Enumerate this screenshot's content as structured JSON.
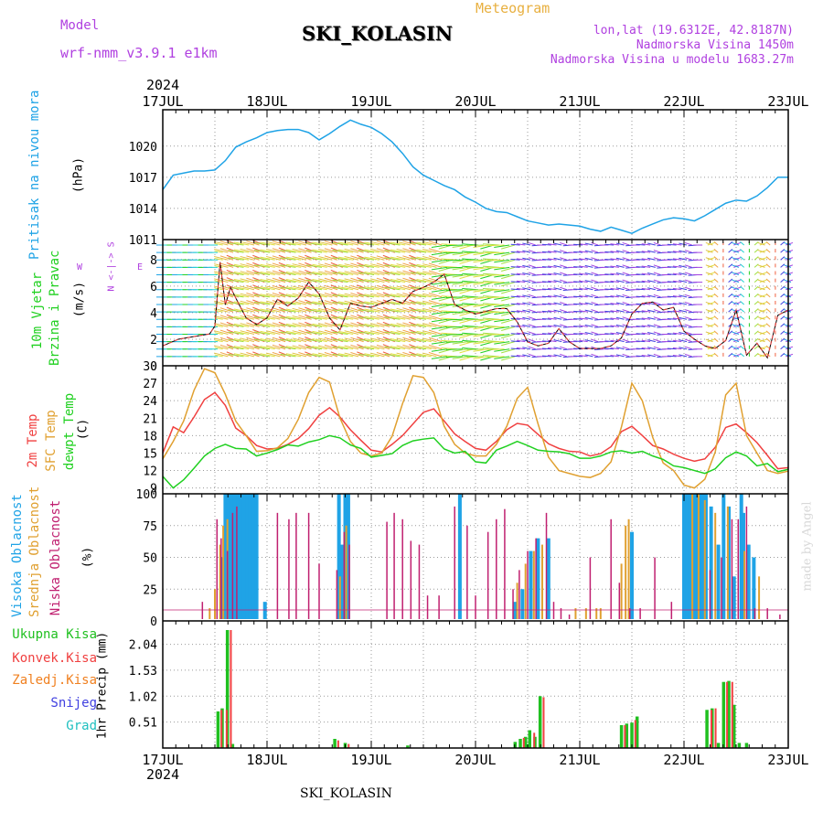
{
  "header": {
    "model_label": "Model",
    "model_name": "wrf-nmm_v3.9.1 e1km",
    "station": "SKI_KOLASIN",
    "meteogram": "Meteogram",
    "lonlat": "lon,lat (19.6312E, 42.8187N)",
    "elevation": "Nadmorska Visina 1450m",
    "model_elevation": "Nadmorska Visina u modelu 1683.27m",
    "year": "2024",
    "footer_station": "SKI_KOLASIN",
    "credit": "made by Angel"
  },
  "colors": {
    "pressure": "#1fa3e6",
    "t2m": "#f04040",
    "sfc": "#e0a030",
    "dew": "#20d020",
    "high_cloud": "#1fa3e6",
    "mid_cloud": "#e0a030",
    "low_cloud": "#c02070",
    "total_precip": "#20c020",
    "conv_precip": "#f04040",
    "frz_precip": "#f08020",
    "snow": "#4040e0",
    "hail": "#20c0c0",
    "violet": "#b040e0",
    "orange_title": "#e8b040"
  },
  "chart_data": [
    {
      "type": "line",
      "name": "pressure",
      "ylabel": "Pritisak na nivou mora",
      "unit": "(hPa)",
      "yticks": [
        1011,
        1014,
        1017,
        1020
      ],
      "ylim": [
        1011,
        1023.5
      ],
      "x": [
        0,
        0.1,
        0.2,
        0.3,
        0.4,
        0.5,
        0.6,
        0.7,
        0.8,
        0.9,
        1,
        1.1,
        1.2,
        1.3,
        1.4,
        1.5,
        1.6,
        1.7,
        1.8,
        1.9,
        2,
        2.1,
        2.2,
        2.3,
        2.4,
        2.5,
        2.6,
        2.7,
        2.8,
        2.9,
        3,
        3.1,
        3.2,
        3.3,
        3.4,
        3.5,
        3.6,
        3.7,
        3.8,
        3.9,
        4,
        4.1,
        4.2,
        4.3,
        4.4,
        4.5,
        4.6,
        4.7,
        4.8,
        4.9,
        5,
        5.1,
        5.2,
        5.3,
        5.4,
        5.5,
        5.6,
        5.7,
        5.8,
        5.9,
        6
      ],
      "values": [
        1015.8,
        1017.2,
        1017.4,
        1017.6,
        1017.6,
        1017.7,
        1018.6,
        1019.9,
        1020.4,
        1020.8,
        1021.3,
        1021.5,
        1021.6,
        1021.6,
        1021.3,
        1020.6,
        1021.2,
        1021.9,
        1022.5,
        1022.1,
        1021.8,
        1021.2,
        1020.4,
        1019.3,
        1018.0,
        1017.2,
        1016.7,
        1016.2,
        1015.8,
        1015.1,
        1014.6,
        1014.0,
        1013.7,
        1013.6,
        1013.2,
        1012.8,
        1012.6,
        1012.4,
        1012.5,
        1012.4,
        1012.3,
        1012.0,
        1011.8,
        1012.2,
        1011.9,
        1011.6,
        1012.1,
        1012.5,
        1012.9,
        1013.1,
        1013.0,
        1012.8,
        1013.3,
        1013.9,
        1014.5,
        1014.8,
        1014.7,
        1015.2,
        1016.0,
        1017.0,
        1017.0
      ]
    },
    {
      "type": "line",
      "name": "wind",
      "ylabel_line1": "10m Vjetar",
      "ylabel_line2": "Brzina i Pravac",
      "unit": "(m/s)",
      "compass_ns": "N <-|-> S",
      "compass_w": "W",
      "compass_e": "E",
      "yticks": [
        0,
        2,
        4,
        6,
        8
      ],
      "ylim": [
        0,
        9.5
      ],
      "x": [
        0,
        0.15,
        0.3,
        0.45,
        0.5,
        0.55,
        0.6,
        0.65,
        0.7,
        0.8,
        0.9,
        1,
        1.1,
        1.2,
        1.3,
        1.4,
        1.5,
        1.6,
        1.7,
        1.8,
        1.9,
        2,
        2.1,
        2.2,
        2.3,
        2.4,
        2.5,
        2.6,
        2.7,
        2.8,
        2.9,
        3,
        3.1,
        3.2,
        3.3,
        3.4,
        3.5,
        3.6,
        3.7,
        3.8,
        3.9,
        4,
        4.1,
        4.2,
        4.3,
        4.4,
        4.5,
        4.6,
        4.7,
        4.8,
        4.9,
        5,
        5.1,
        5.2,
        5.3,
        5.4,
        5.5,
        5.6,
        5.7,
        5.8,
        5.9,
        6
      ],
      "values": [
        1.5,
        2.0,
        2.2,
        2.4,
        3.0,
        7.8,
        4.6,
        5.9,
        5.1,
        3.6,
        3.1,
        3.6,
        5.0,
        4.5,
        5.1,
        6.3,
        5.4,
        3.6,
        2.7,
        4.7,
        4.5,
        4.4,
        4.7,
        5.0,
        4.7,
        5.6,
        5.9,
        6.3,
        6.9,
        4.6,
        4.2,
        3.9,
        4.1,
        4.3,
        4.3,
        3.3,
        1.8,
        1.5,
        1.7,
        2.8,
        1.8,
        1.3,
        1.3,
        1.3,
        1.5,
        2.1,
        3.9,
        4.7,
        4.8,
        4.2,
        4.4,
        2.6,
        2.0,
        1.5,
        1.3,
        1.9,
        4.2,
        0.8,
        1.7,
        0.6,
        3.8,
        4.2
      ]
    },
    {
      "type": "line",
      "name": "temperature",
      "ylabel_t2m": "2m Temp",
      "ylabel_sfc": "SFC Temp",
      "ylabel_dew": "dewpt Temp",
      "unit": "(C)",
      "yticks": [
        9,
        12,
        15,
        18,
        21,
        24,
        27,
        30
      ],
      "ylim": [
        8,
        30
      ],
      "x": [
        0,
        0.1,
        0.2,
        0.3,
        0.4,
        0.5,
        0.6,
        0.7,
        0.8,
        0.9,
        1,
        1.1,
        1.2,
        1.3,
        1.4,
        1.5,
        1.6,
        1.7,
        1.8,
        1.9,
        2,
        2.1,
        2.2,
        2.3,
        2.4,
        2.5,
        2.6,
        2.7,
        2.8,
        2.9,
        3,
        3.1,
        3.2,
        3.3,
        3.4,
        3.5,
        3.6,
        3.7,
        3.8,
        3.9,
        4,
        4.1,
        4.2,
        4.3,
        4.4,
        4.5,
        4.6,
        4.7,
        4.8,
        4.9,
        5,
        5.1,
        5.2,
        5.3,
        5.4,
        5.5,
        5.6,
        5.7,
        5.8,
        5.9,
        6
      ],
      "series": [
        {
          "name": "2m Temp",
          "color_key": "t2m",
          "values": [
            15.0,
            19.5,
            18.5,
            21.2,
            24.2,
            25.4,
            23.2,
            19.3,
            18.0,
            16.3,
            15.7,
            15.8,
            16.5,
            17.5,
            19.2,
            21.5,
            22.8,
            21.2,
            19.0,
            17.2,
            15.5,
            15.2,
            16.5,
            18.0,
            20.0,
            22.0,
            22.6,
            20.5,
            18.3,
            17.0,
            15.8,
            15.5,
            17.0,
            19.0,
            20.1,
            19.8,
            18.2,
            16.6,
            15.8,
            15.3,
            15.2,
            14.5,
            14.9,
            16.1,
            18.7,
            19.6,
            18.0,
            16.3,
            15.7,
            14.8,
            14.1,
            13.6,
            14.0,
            16.0,
            19.4,
            20.0,
            18.5,
            16.8,
            14.6,
            12.3,
            12.5
          ]
        },
        {
          "name": "SFC Temp",
          "color_key": "sfc",
          "values": [
            14.0,
            17.0,
            20.5,
            25.8,
            29.5,
            28.8,
            25.1,
            20.5,
            18.0,
            15.3,
            15.4,
            15.9,
            17.5,
            20.8,
            25.4,
            28.0,
            27.2,
            21.0,
            17.0,
            15.0,
            14.5,
            15.0,
            17.9,
            23.5,
            28.3,
            28.0,
            25.4,
            19.6,
            16.5,
            15.0,
            14.5,
            14.5,
            16.5,
            19.6,
            24.4,
            26.3,
            20.0,
            14.3,
            12.0,
            11.5,
            11.0,
            10.8,
            11.5,
            13.5,
            19.5,
            27.0,
            24.0,
            17.7,
            13.3,
            12.0,
            9.5,
            9.0,
            10.5,
            15.2,
            25.0,
            27.0,
            18.0,
            15.0,
            12.0,
            11.5,
            11.9
          ]
        },
        {
          "name": "dewpt Temp",
          "color_key": "dew",
          "values": [
            11.0,
            9.0,
            10.4,
            12.4,
            14.5,
            15.8,
            16.5,
            15.8,
            15.7,
            14.5,
            15.0,
            15.6,
            16.4,
            16.2,
            16.9,
            17.3,
            18.0,
            17.6,
            16.4,
            15.8,
            14.3,
            14.6,
            14.9,
            16.3,
            17.1,
            17.4,
            17.6,
            15.7,
            15.0,
            15.3,
            13.5,
            13.3,
            15.5,
            16.2,
            17.0,
            16.3,
            15.5,
            15.3,
            15.2,
            14.9,
            14.1,
            14.1,
            14.5,
            15.2,
            15.4,
            15.0,
            15.3,
            14.5,
            13.9,
            12.8,
            12.5,
            12.0,
            11.5,
            12.3,
            14.2,
            15.2,
            14.5,
            12.8,
            13.2,
            11.8,
            12.2
          ]
        }
      ]
    },
    {
      "type": "bar",
      "name": "clouds",
      "ylabel_high": "Visoka Oblacnost",
      "ylabel_mid": "Srednja Oblacnost",
      "ylabel_low": "Niska Oblacnost",
      "unit": "(%)",
      "yticks": [
        0,
        25,
        50,
        75,
        100
      ],
      "ylim": [
        0,
        100
      ],
      "series": [
        {
          "name": "Visoka Oblacnost",
          "color_key": "high_cloud",
          "x": [
            0.57,
            0.6,
            0.63,
            0.66,
            0.69,
            0.72,
            0.75,
            0.78,
            0.81,
            0.84,
            0.87,
            0.9,
            0.98,
            1.69,
            1.72,
            1.75,
            1.78,
            2.85,
            3.38,
            3.45,
            3.53,
            3.6,
            3.7,
            4.5,
            5.0,
            5.03,
            5.06,
            5.09,
            5.12,
            5.15,
            5.18,
            5.21,
            5.26,
            5.33,
            5.38,
            5.43,
            5.48,
            5.55,
            5.57,
            5.62,
            5.67
          ],
          "values": [
            50,
            100,
            100,
            100,
            100,
            100,
            100,
            100,
            100,
            100,
            100,
            100,
            15,
            100,
            60,
            100,
            100,
            100,
            15,
            25,
            55,
            65,
            65,
            70,
            100,
            100,
            100,
            100,
            100,
            100,
            100,
            100,
            90,
            60,
            100,
            90,
            35,
            100,
            85,
            60,
            50
          ]
        },
        {
          "name": "Srednja Oblacnost",
          "color_key": "mid_cloud",
          "x": [
            0.45,
            0.5,
            0.55,
            0.58,
            0.62,
            1.7,
            1.76,
            3.4,
            3.48,
            3.56,
            3.64,
            3.96,
            4.06,
            4.16,
            4.2,
            4.4,
            4.44,
            4.47,
            5.08,
            5.14,
            5.2,
            5.3,
            5.42,
            5.58,
            5.72
          ],
          "values": [
            10,
            25,
            60,
            75,
            80,
            35,
            75,
            30,
            45,
            55,
            60,
            10,
            10,
            10,
            10,
            45,
            75,
            80,
            100,
            100,
            95,
            85,
            90,
            55,
            35
          ]
        },
        {
          "name": "Niska Oblacnost",
          "color_key": "low_cloud",
          "x": [
            0.38,
            0.52,
            0.56,
            0.62,
            0.67,
            0.71,
            1.1,
            1.21,
            1.28,
            1.4,
            1.5,
            1.67,
            1.74,
            1.79,
            2.15,
            2.22,
            2.3,
            2.38,
            2.46,
            2.54,
            2.65,
            2.8,
            2.92,
            3.0,
            3.12,
            3.2,
            3.28,
            3.36,
            3.42,
            3.5,
            3.58,
            3.68,
            3.75,
            3.82,
            3.9,
            4.1,
            4.3,
            4.38,
            4.48,
            4.58,
            4.72,
            4.88,
            5.25,
            5.36,
            5.46,
            5.52,
            5.6,
            5.68,
            5.8,
            5.92
          ],
          "values": [
            15,
            80,
            65,
            55,
            85,
            90,
            85,
            80,
            85,
            85,
            45,
            40,
            70,
            60,
            78,
            85,
            80,
            63,
            60,
            20,
            20,
            90,
            75,
            20,
            70,
            80,
            88,
            25,
            40,
            55,
            65,
            85,
            15,
            10,
            5,
            50,
            80,
            30,
            10,
            10,
            50,
            15,
            40,
            50,
            80,
            80,
            90,
            10,
            10,
            5
          ]
        }
      ]
    },
    {
      "type": "bar",
      "name": "precipitation",
      "ylabel": "1hr Precip (mm)",
      "legend": [
        "Ukupna Kisa",
        "Konvek.Kisa",
        "Zaledj.Kisa",
        "Snijeg",
        "Grad"
      ],
      "yticks": [
        0.51,
        1.02,
        1.53,
        2.04
      ],
      "ytick_labels": [
        "0.51",
        "1.02",
        "1.53",
        "2.04"
      ],
      "ylim": [
        0,
        2.5
      ],
      "series": [
        {
          "name": "Ukupna Kisa",
          "color_key": "total_precip",
          "x": [
            0.53,
            0.57,
            0.62,
            0.67,
            1.65,
            1.75,
            2.35,
            3.38,
            3.43,
            3.48,
            3.52,
            3.57,
            3.62,
            4.4,
            4.45,
            4.5,
            4.55,
            5.22,
            5.27,
            5.33,
            5.38,
            5.43,
            5.48,
            5.53,
            5.6
          ],
          "values": [
            0.72,
            0.78,
            2.32,
            0.08,
            0.18,
            0.1,
            0.05,
            0.12,
            0.18,
            0.22,
            0.35,
            0.22,
            1.02,
            0.45,
            0.48,
            0.5,
            0.62,
            0.75,
            0.78,
            0.1,
            1.3,
            1.32,
            0.85,
            0.1,
            0.1
          ]
        },
        {
          "name": "Konvek.Kisa",
          "color_key": "conv_precip",
          "x": [
            0.55,
            0.6,
            0.64,
            1.67,
            1.77,
            3.45,
            3.55,
            3.64,
            4.42,
            4.52,
            5.25,
            5.29,
            5.4,
            5.45
          ],
          "values": [
            0.75,
            0.75,
            2.32,
            0.15,
            0.08,
            0.2,
            0.3,
            1.0,
            0.45,
            0.55,
            0.75,
            0.78,
            1.3,
            1.3
          ]
        }
      ]
    }
  ],
  "time_axis": {
    "labels": [
      "17JUL",
      "18JUL",
      "19JUL",
      "20JUL",
      "21JUL",
      "22JUL",
      "23JUL"
    ],
    "year": "2024"
  }
}
